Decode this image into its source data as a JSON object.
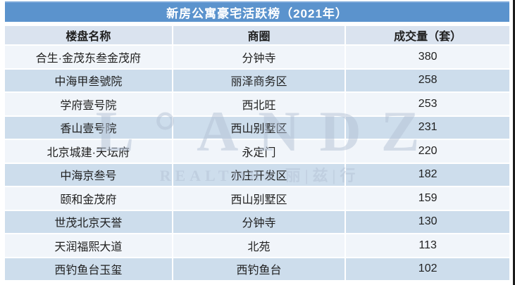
{
  "title": "新房公寓豪宅活跃榜（2021年）",
  "chart_data": {
    "type": "table",
    "title": "新房公寓豪宅活跃榜（2021年）",
    "columns": [
      "楼盘名称",
      "商圈",
      "成交量（套）"
    ],
    "rows": [
      [
        "合生·金茂东叁金茂府",
        "分钟寺",
        380
      ],
      [
        "中海甲叁號院",
        "丽泽商务区",
        258
      ],
      [
        "学府壹号院",
        "西北旺",
        253
      ],
      [
        "香山壹号院",
        "西山别墅区",
        231
      ],
      [
        "北京城建·天坛府",
        "永定门",
        220
      ],
      [
        "中海京叁号",
        "亦庄开发区",
        182
      ],
      [
        "颐和金茂府",
        "西山别墅区",
        159
      ],
      [
        "世茂北京天誉",
        "分钟寺",
        130
      ],
      [
        "天润福熙大道",
        "北苑",
        113
      ],
      [
        "西钓鱼台玉玺",
        "西钓鱼台",
        102
      ]
    ]
  },
  "watermark": {
    "line1": "L°ANDZ",
    "line2": "REALTORS 丽|兹|行"
  },
  "colors": {
    "title_bg": "#5b93cd",
    "header_bg": "#dae3ef",
    "row_bg": "#f1f5fa",
    "row_alt_bg": "#cdddec",
    "title_text": "#ffffff",
    "body_text": "#1f1f1f",
    "watermark_text": "#b5c3d6"
  }
}
